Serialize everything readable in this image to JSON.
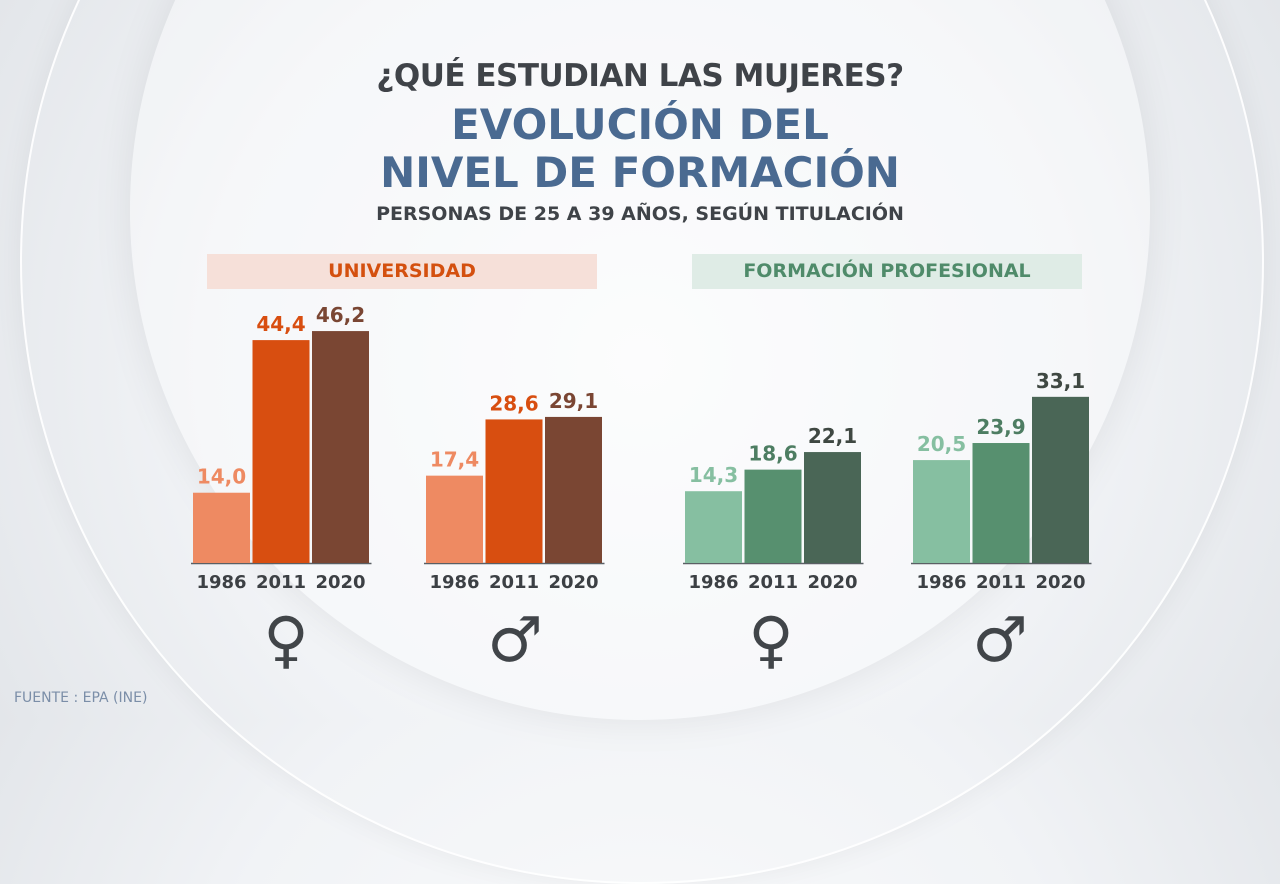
{
  "header": {
    "question": "¿QUÉ ESTUDIAN LAS MUJERES?",
    "title_line1": "EVOLUCIÓN DEL",
    "title_line2": "NIVEL DE FORMACIÓN",
    "subtitle": "PERSONAS DE 25 A 39 AÑOS, SEGÚN TITULACIÓN"
  },
  "source": "FUENTE : EPA (INE)",
  "symbols": {
    "female": "♀",
    "male": "♂"
  },
  "chart_data": [
    {
      "type": "bar",
      "title": "UNIVERSIDAD",
      "categories": [
        "1986",
        "2011",
        "2020"
      ],
      "series": [
        {
          "group": "female",
          "values": [
            14.0,
            44.4,
            46.2
          ],
          "labels": [
            "14,0",
            "44,4",
            "46,2"
          ]
        },
        {
          "group": "male",
          "values": [
            17.4,
            28.6,
            29.1
          ],
          "labels": [
            "17,4",
            "28,6",
            "29,1"
          ]
        }
      ],
      "colors": [
        "#ee8a62",
        "#d84e10",
        "#7a4633"
      ],
      "label_colors": [
        "#ee8a62",
        "#d84e10",
        "#7a4633"
      ],
      "ylim": [
        0,
        50
      ],
      "grid": false
    },
    {
      "type": "bar",
      "title": "FORMACIÓN PROFESIONAL",
      "categories": [
        "1986",
        "2011",
        "2020"
      ],
      "series": [
        {
          "group": "female",
          "values": [
            14.3,
            18.6,
            22.1
          ],
          "labels": [
            "14,3",
            "18,6",
            "22,1"
          ]
        },
        {
          "group": "male",
          "values": [
            20.5,
            23.9,
            33.1
          ],
          "labels": [
            "20,5",
            "23,9",
            "33,1"
          ]
        }
      ],
      "colors": [
        "#86bfa1",
        "#57906f",
        "#4a6656"
      ],
      "label_colors": [
        "#86bfa1",
        "#4d7d62",
        "#3f4842"
      ],
      "ylim": [
        0,
        50
      ],
      "grid": false
    }
  ]
}
